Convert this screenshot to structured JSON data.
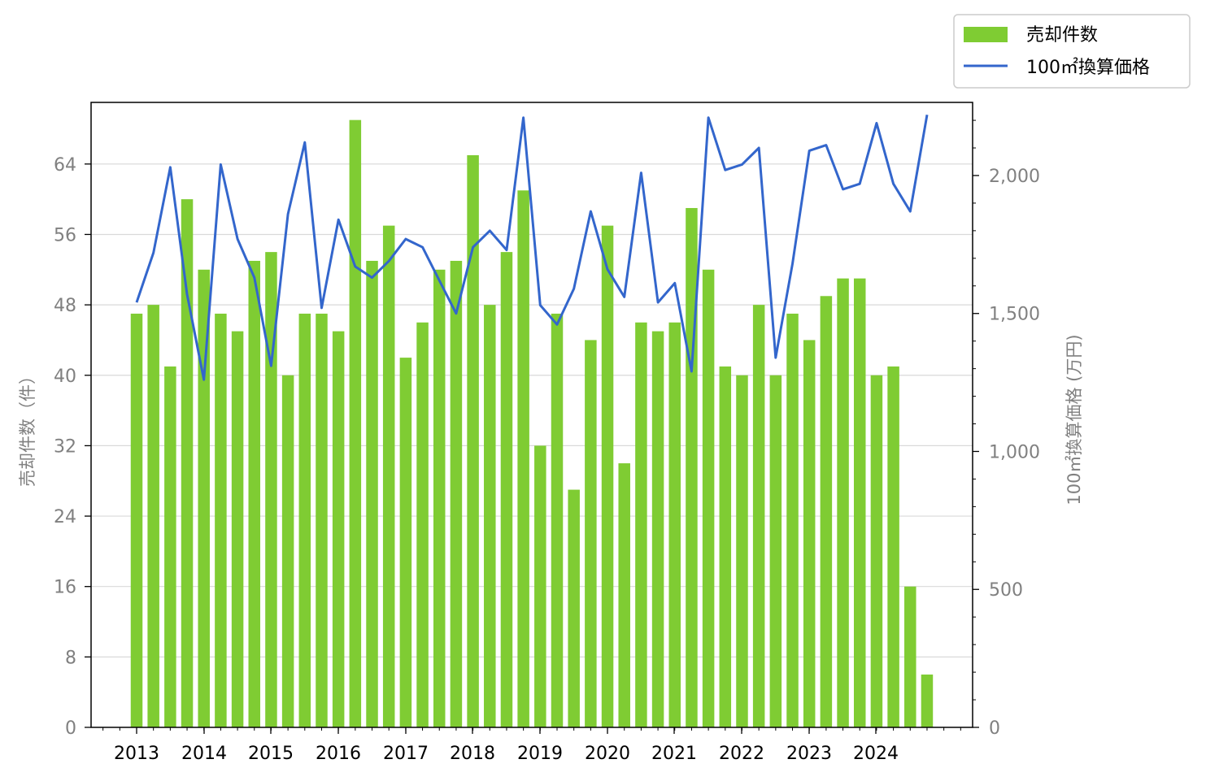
{
  "chart_data": {
    "type": "bar",
    "categories": [
      "2013-Q1",
      "2013-Q2",
      "2013-Q3",
      "2013-Q4",
      "2014-Q1",
      "2014-Q2",
      "2014-Q3",
      "2014-Q4",
      "2015-Q1",
      "2015-Q2",
      "2015-Q3",
      "2015-Q4",
      "2016-Q1",
      "2016-Q2",
      "2016-Q3",
      "2016-Q4",
      "2017-Q1",
      "2017-Q2",
      "2017-Q3",
      "2017-Q4",
      "2018-Q1",
      "2018-Q2",
      "2018-Q3",
      "2018-Q4",
      "2019-Q1",
      "2019-Q2",
      "2019-Q3",
      "2019-Q4",
      "2020-Q1",
      "2020-Q2",
      "2020-Q3",
      "2020-Q4",
      "2021-Q1",
      "2021-Q2",
      "2021-Q3",
      "2021-Q4",
      "2022-Q1",
      "2022-Q2",
      "2022-Q3",
      "2022-Q4",
      "2023-Q1",
      "2023-Q2",
      "2023-Q3",
      "2023-Q4",
      "2024-Q1",
      "2024-Q2",
      "2024-Q3",
      "2024-Q4"
    ],
    "x_tick_labels": [
      "2013",
      "2014",
      "2015",
      "2016",
      "2017",
      "2018",
      "2019",
      "2020",
      "2021",
      "2022",
      "2023",
      "2024"
    ],
    "series": [
      {
        "name": "売却件数",
        "type": "bar",
        "axis": "left",
        "color": "#7fcc33",
        "values": [
          47,
          48,
          41,
          60,
          52,
          47,
          45,
          53,
          54,
          40,
          47,
          47,
          45,
          69,
          53,
          57,
          42,
          46,
          52,
          53,
          65,
          48,
          54,
          61,
          32,
          47,
          27,
          44,
          57,
          30,
          46,
          45,
          46,
          59,
          52,
          41,
          40,
          48,
          40,
          47,
          44,
          49,
          51,
          51,
          40,
          41,
          16,
          6
        ]
      },
      {
        "name": "100㎡換算価格",
        "type": "line",
        "axis": "right",
        "color": "#3366cc",
        "values": [
          1540,
          1720,
          2030,
          1570,
          1260,
          2040,
          1770,
          1630,
          1310,
          1860,
          2120,
          1520,
          1840,
          1670,
          1630,
          1690,
          1770,
          1740,
          1620,
          1500,
          1740,
          1800,
          1730,
          2210,
          1530,
          1460,
          1590,
          1870,
          1660,
          1560,
          2010,
          1540,
          1610,
          1290,
          2210,
          2020,
          2040,
          2100,
          1340,
          1680,
          2090,
          2110,
          1950,
          1970,
          2190,
          1970,
          1870,
          2220
        ]
      }
    ],
    "left_axis": {
      "label": "売却件数（件）",
      "ticks": [
        "0",
        "8",
        "16",
        "24",
        "32",
        "40",
        "48",
        "56",
        "64"
      ],
      "ylim": [
        0,
        71
      ]
    },
    "right_axis": {
      "label": "100㎡換算価格 (万円)",
      "ticks": [
        "0",
        "500",
        "1,000",
        "1,500",
        "2,000"
      ],
      "ylim": [
        0,
        2265
      ]
    },
    "legend": {
      "placement": "top-right outside",
      "entries": [
        "売却件数",
        "100㎡換算価格"
      ]
    },
    "grid": "horizontal (left axis)",
    "colors": {
      "bar": "#7fcc33",
      "line": "#3366cc",
      "grid": "#d9d9d9",
      "tick_text_gray": "#808080"
    }
  }
}
